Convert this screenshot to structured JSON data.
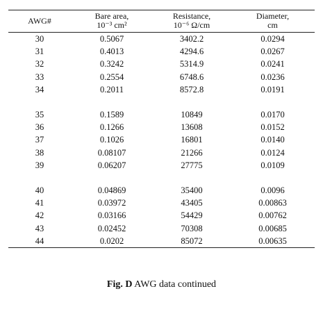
{
  "headers": {
    "awg": "AWG#",
    "area_line1": "Bare area,",
    "area_line2": "10⁻³ cm²",
    "res_line1": "Resistance,",
    "res_line2": "10⁻⁶ Ω/cm",
    "dia_line1": "Diameter,",
    "dia_line2": "cm"
  },
  "groups": [
    [
      {
        "awg": "30",
        "area": "0.5067",
        "resistance": "3402.2",
        "diameter": "0.0294"
      },
      {
        "awg": "31",
        "area": "0.4013",
        "resistance": "4294.6",
        "diameter": "0.0267"
      },
      {
        "awg": "32",
        "area": "0.3242",
        "resistance": "5314.9",
        "diameter": "0.0241"
      },
      {
        "awg": "33",
        "area": "0.2554",
        "resistance": "6748.6",
        "diameter": "0.0236"
      },
      {
        "awg": "34",
        "area": "0.2011",
        "resistance": "8572.8",
        "diameter": "0.0191"
      }
    ],
    [
      {
        "awg": "35",
        "area": "0.1589",
        "resistance": "10849",
        "diameter": "0.0170"
      },
      {
        "awg": "36",
        "area": "0.1266",
        "resistance": "13608",
        "diameter": "0.0152"
      },
      {
        "awg": "37",
        "area": "0.1026",
        "resistance": "16801",
        "diameter": "0.0140"
      },
      {
        "awg": "38",
        "area": "0.08107",
        "resistance": "21266",
        "diameter": "0.0124"
      },
      {
        "awg": "39",
        "area": "0.06207",
        "resistance": "27775",
        "diameter": "0.0109"
      }
    ],
    [
      {
        "awg": "40",
        "area": "0.04869",
        "resistance": "35400",
        "diameter": "0.0096"
      },
      {
        "awg": "41",
        "area": "0.03972",
        "resistance": "43405",
        "diameter": "0.00863"
      },
      {
        "awg": "42",
        "area": "0.03166",
        "resistance": "54429",
        "diameter": "0.00762"
      },
      {
        "awg": "43",
        "area": "0.02452",
        "resistance": "70308",
        "diameter": "0.00685"
      },
      {
        "awg": "44",
        "area": "0.0202",
        "resistance": "85072",
        "diameter": "0.00635"
      }
    ]
  ],
  "caption": {
    "label": "Fig. D",
    "text": "AWG data continued"
  }
}
